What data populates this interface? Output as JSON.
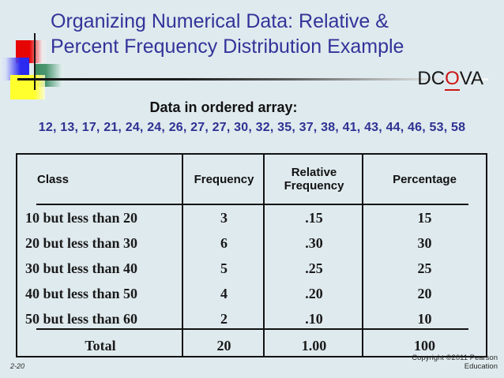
{
  "slide": {
    "title_line1": "Organizing Numerical Data: Relative &",
    "title_line2": "Percent Frequency Distribution Example",
    "dcova": {
      "before": "DC",
      "highlight": "O",
      "after": "VA"
    },
    "array_label": "Data in ordered array:",
    "array_values": "12, 13, 17, 21, 24, 24, 26, 27, 27, 30, 32, 35, 37, 38, 41, 43, 44, 46, 53, 58",
    "footer": {
      "slide_number": "2-20",
      "copyright_line1": "Copyright ©2011 Pearson",
      "copyright_line2": "Education"
    }
  },
  "table": {
    "headers": {
      "class": "Class",
      "frequency": "Frequency",
      "relative_frequency": "Relative Frequency",
      "percentage": "Percentage"
    },
    "rows": [
      {
        "class": "10 but less than 20",
        "frequency": "3",
        "relative": ".15",
        "percentage": "15"
      },
      {
        "class": "20 but less than 30",
        "frequency": "6",
        "relative": ".30",
        "percentage": "30"
      },
      {
        "class": "30 but less than 40",
        "frequency": "5",
        "relative": ".25",
        "percentage": "25"
      },
      {
        "class": "40 but less than 50",
        "frequency": "4",
        "relative": ".20",
        "percentage": "20"
      },
      {
        "class": "50 but less than 60",
        "frequency": "2",
        "relative": ".10",
        "percentage": "10"
      }
    ],
    "total": {
      "class": "Total",
      "frequency": "20",
      "relative": "1.00",
      "percentage": "100"
    }
  },
  "colors": {
    "background": "#dfeaee",
    "title_text": "#333399",
    "array_text": "#2e3192",
    "dcova_highlight": "#cc1616",
    "table_border": "#121212",
    "accent_red": "#e60505",
    "accent_blue": "#2a2af0",
    "accent_green": "#3c8a60",
    "accent_yellow": "#ffff2d"
  }
}
